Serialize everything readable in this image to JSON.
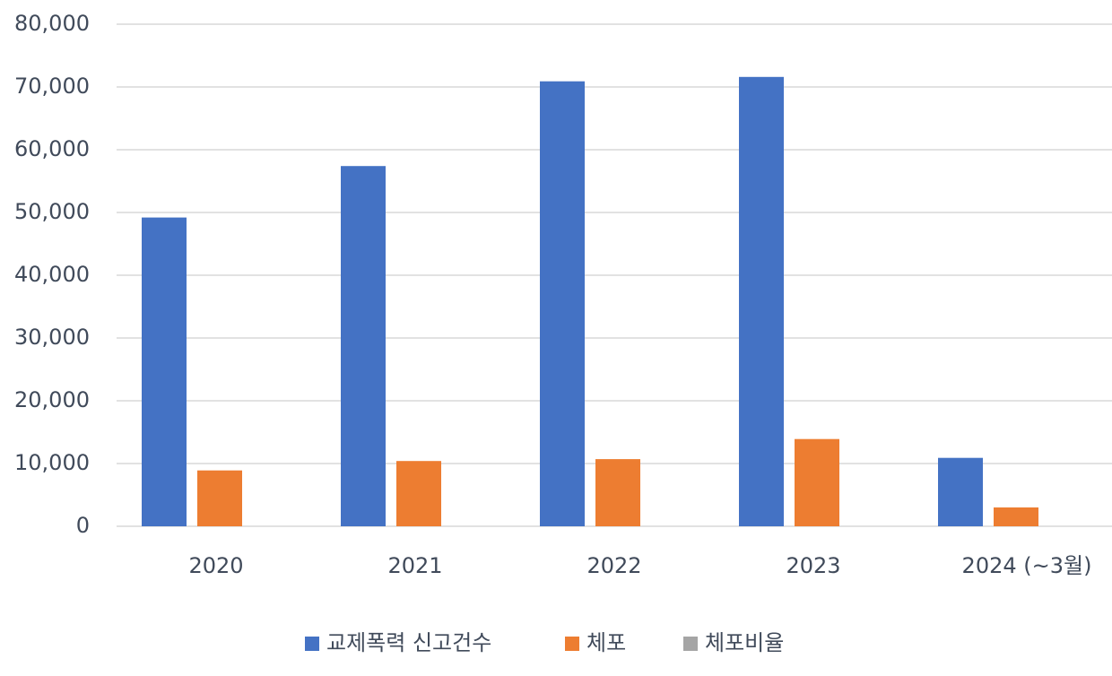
{
  "chart_data": {
    "type": "bar",
    "categories": [
      "2020",
      "2021",
      "2022",
      "2023",
      "2024 (~3월)"
    ],
    "series": [
      {
        "name": "교제폭력 신고건수",
        "color": "#4472c4",
        "values": [
          49200,
          57400,
          70900,
          71600,
          10900
        ]
      },
      {
        "name": "체포",
        "color": "#ed7d31",
        "values": [
          8900,
          10400,
          10700,
          13900,
          3000
        ]
      },
      {
        "name": "체포비율",
        "color": "#a5a5a5",
        "values": [
          null,
          null,
          null,
          null,
          null
        ]
      }
    ],
    "ylim": [
      0,
      80000
    ],
    "yticks": [
      0,
      {
        "value": 10000,
        "label": "10,000"
      },
      {
        "value": 20000,
        "label": "20,000"
      },
      {
        "value": 30000,
        "label": "30,000"
      },
      {
        "value": 40000,
        "label": "40,000"
      },
      {
        "value": 50000,
        "label": "50,000"
      },
      {
        "value": 60000,
        "label": "60,000"
      },
      {
        "value": 70000,
        "label": "70,000"
      },
      {
        "value": 80000,
        "label": "80,000"
      }
    ],
    "grid": true,
    "legend": "bottom"
  }
}
